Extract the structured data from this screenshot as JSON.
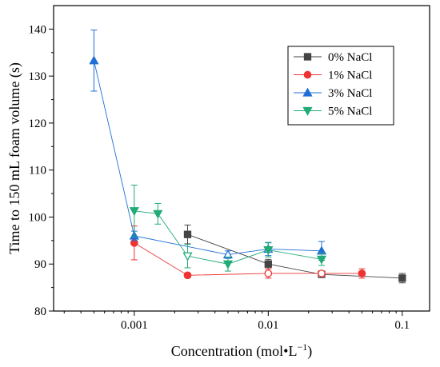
{
  "chart_data": {
    "type": "scatter",
    "title": "",
    "xlabel": "Concentration (mol•L",
    "xlabel_sup": "−1",
    "xlabel_close": ")",
    "ylabel": "Time to 150 mL foam volume (s)",
    "xscale": "log",
    "xlim": [
      0.00025,
      0.16
    ],
    "ylim": [
      80,
      145
    ],
    "x_ticks": [
      {
        "value": 0.001,
        "label": "0.001"
      },
      {
        "value": 0.01,
        "label": "0.01"
      },
      {
        "value": 0.1,
        "label": "0.1"
      }
    ],
    "y_ticks": [
      80,
      90,
      100,
      110,
      120,
      130,
      140
    ],
    "grid": false,
    "legend_position": "top-right",
    "series": [
      {
        "name": "0% NaCl",
        "color": "#444444",
        "marker": "square",
        "points": [
          {
            "x": 0.0025,
            "y": 96.3,
            "err": 2.0,
            "filled": true
          },
          {
            "x": 0.01,
            "y": 90.0,
            "err": 1.0,
            "filled": true
          },
          {
            "x": 0.025,
            "y": 87.8,
            "err": 0.6,
            "filled": false
          },
          {
            "x": 0.1,
            "y": 87.0,
            "err": 1.0,
            "filled": true
          }
        ]
      },
      {
        "name": "1% NaCl",
        "color": "#ee3333",
        "marker": "circle",
        "points": [
          {
            "x": 0.001,
            "y": 94.5,
            "err": 3.6,
            "filled": true
          },
          {
            "x": 0.0025,
            "y": 87.6,
            "err": 0.5,
            "filled": true
          },
          {
            "x": 0.01,
            "y": 88.0,
            "err": 1.0,
            "filled": false
          },
          {
            "x": 0.025,
            "y": 88.0,
            "err": 0.5,
            "filled": false
          },
          {
            "x": 0.05,
            "y": 88.0,
            "err": 1.0,
            "filled": true
          }
        ]
      },
      {
        "name": "3% NaCl",
        "color": "#1f6fd6",
        "marker": "triangle",
        "points": [
          {
            "x": 0.0005,
            "y": 133.3,
            "err": 6.5,
            "filled": true
          },
          {
            "x": 0.001,
            "y": 96.0,
            "err": 1.0,
            "filled": true
          },
          {
            "x": 0.005,
            "y": 92.0,
            "err": 0.8,
            "filled": false
          },
          {
            "x": 0.01,
            "y": 93.2,
            "err": 1.4,
            "filled": false
          },
          {
            "x": 0.025,
            "y": 92.8,
            "err": 2.0,
            "filled": true
          }
        ]
      },
      {
        "name": "5% NaCl",
        "color": "#22aa77",
        "marker": "triangle-down",
        "points": [
          {
            "x": 0.001,
            "y": 101.3,
            "err": 5.5,
            "filled": true
          },
          {
            "x": 0.0015,
            "y": 100.7,
            "err": 2.2,
            "filled": true
          },
          {
            "x": 0.0025,
            "y": 91.7,
            "err": 2.5,
            "filled": false
          },
          {
            "x": 0.005,
            "y": 90.0,
            "err": 1.5,
            "filled": true
          },
          {
            "x": 0.01,
            "y": 93.0,
            "err": 1.5,
            "filled": true
          },
          {
            "x": 0.025,
            "y": 91.0,
            "err": 1.3,
            "filled": true
          }
        ]
      }
    ]
  }
}
